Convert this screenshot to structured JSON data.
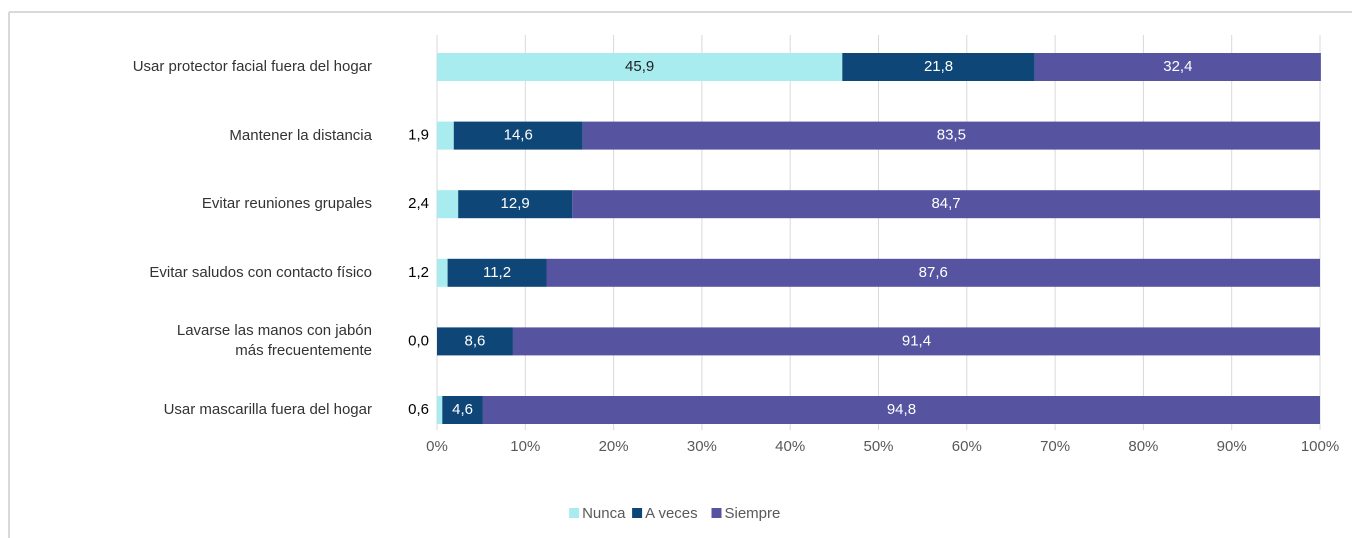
{
  "chart_data": {
    "type": "stacked_barh",
    "categories": [
      "Usar protector facial fuera del hogar",
      "Mantener la distancia",
      "Evitar reuniones grupales",
      "Evitar saludos con contacto físico",
      "Lavarse las manos con jabón\nmás frecuentemente",
      "Usar mascarilla fuera del hogar"
    ],
    "series": [
      {
        "name": "Nunca",
        "color": "#a8ecef",
        "values": [
          45.9,
          1.9,
          2.4,
          1.2,
          0.0,
          0.6
        ],
        "value_labels": [
          "45,9",
          "1,9",
          "2,4",
          "1,2",
          "0,0",
          "0,6"
        ]
      },
      {
        "name": "A veces",
        "color": "#0e4677",
        "values": [
          21.8,
          14.6,
          12.9,
          11.2,
          8.6,
          4.6
        ],
        "value_labels": [
          "21,8",
          "14,6",
          "12,9",
          "11,2",
          "8,6",
          "4,6"
        ]
      },
      {
        "name": "Siempre",
        "color": "#5653a0",
        "values": [
          32.4,
          83.5,
          84.7,
          87.6,
          91.4,
          94.8
        ],
        "value_labels": [
          "32,4",
          "83,5",
          "84,7",
          "87,6",
          "91,4",
          "94,8"
        ]
      }
    ],
    "xlim": [
      0,
      100
    ],
    "xticks": [
      {
        "value": 0,
        "label": "0%"
      },
      {
        "value": 10,
        "label": "10%"
      },
      {
        "value": 20,
        "label": "20%"
      },
      {
        "value": 30,
        "label": "30%"
      },
      {
        "value": 40,
        "label": "40%"
      },
      {
        "value": 50,
        "label": "50%"
      },
      {
        "value": 60,
        "label": "60%"
      },
      {
        "value": 70,
        "label": "70%"
      },
      {
        "value": 80,
        "label": "80%"
      },
      {
        "value": 90,
        "label": "90%"
      },
      {
        "value": 100,
        "label": "100%"
      }
    ],
    "grid": true,
    "legend": "bottom"
  }
}
